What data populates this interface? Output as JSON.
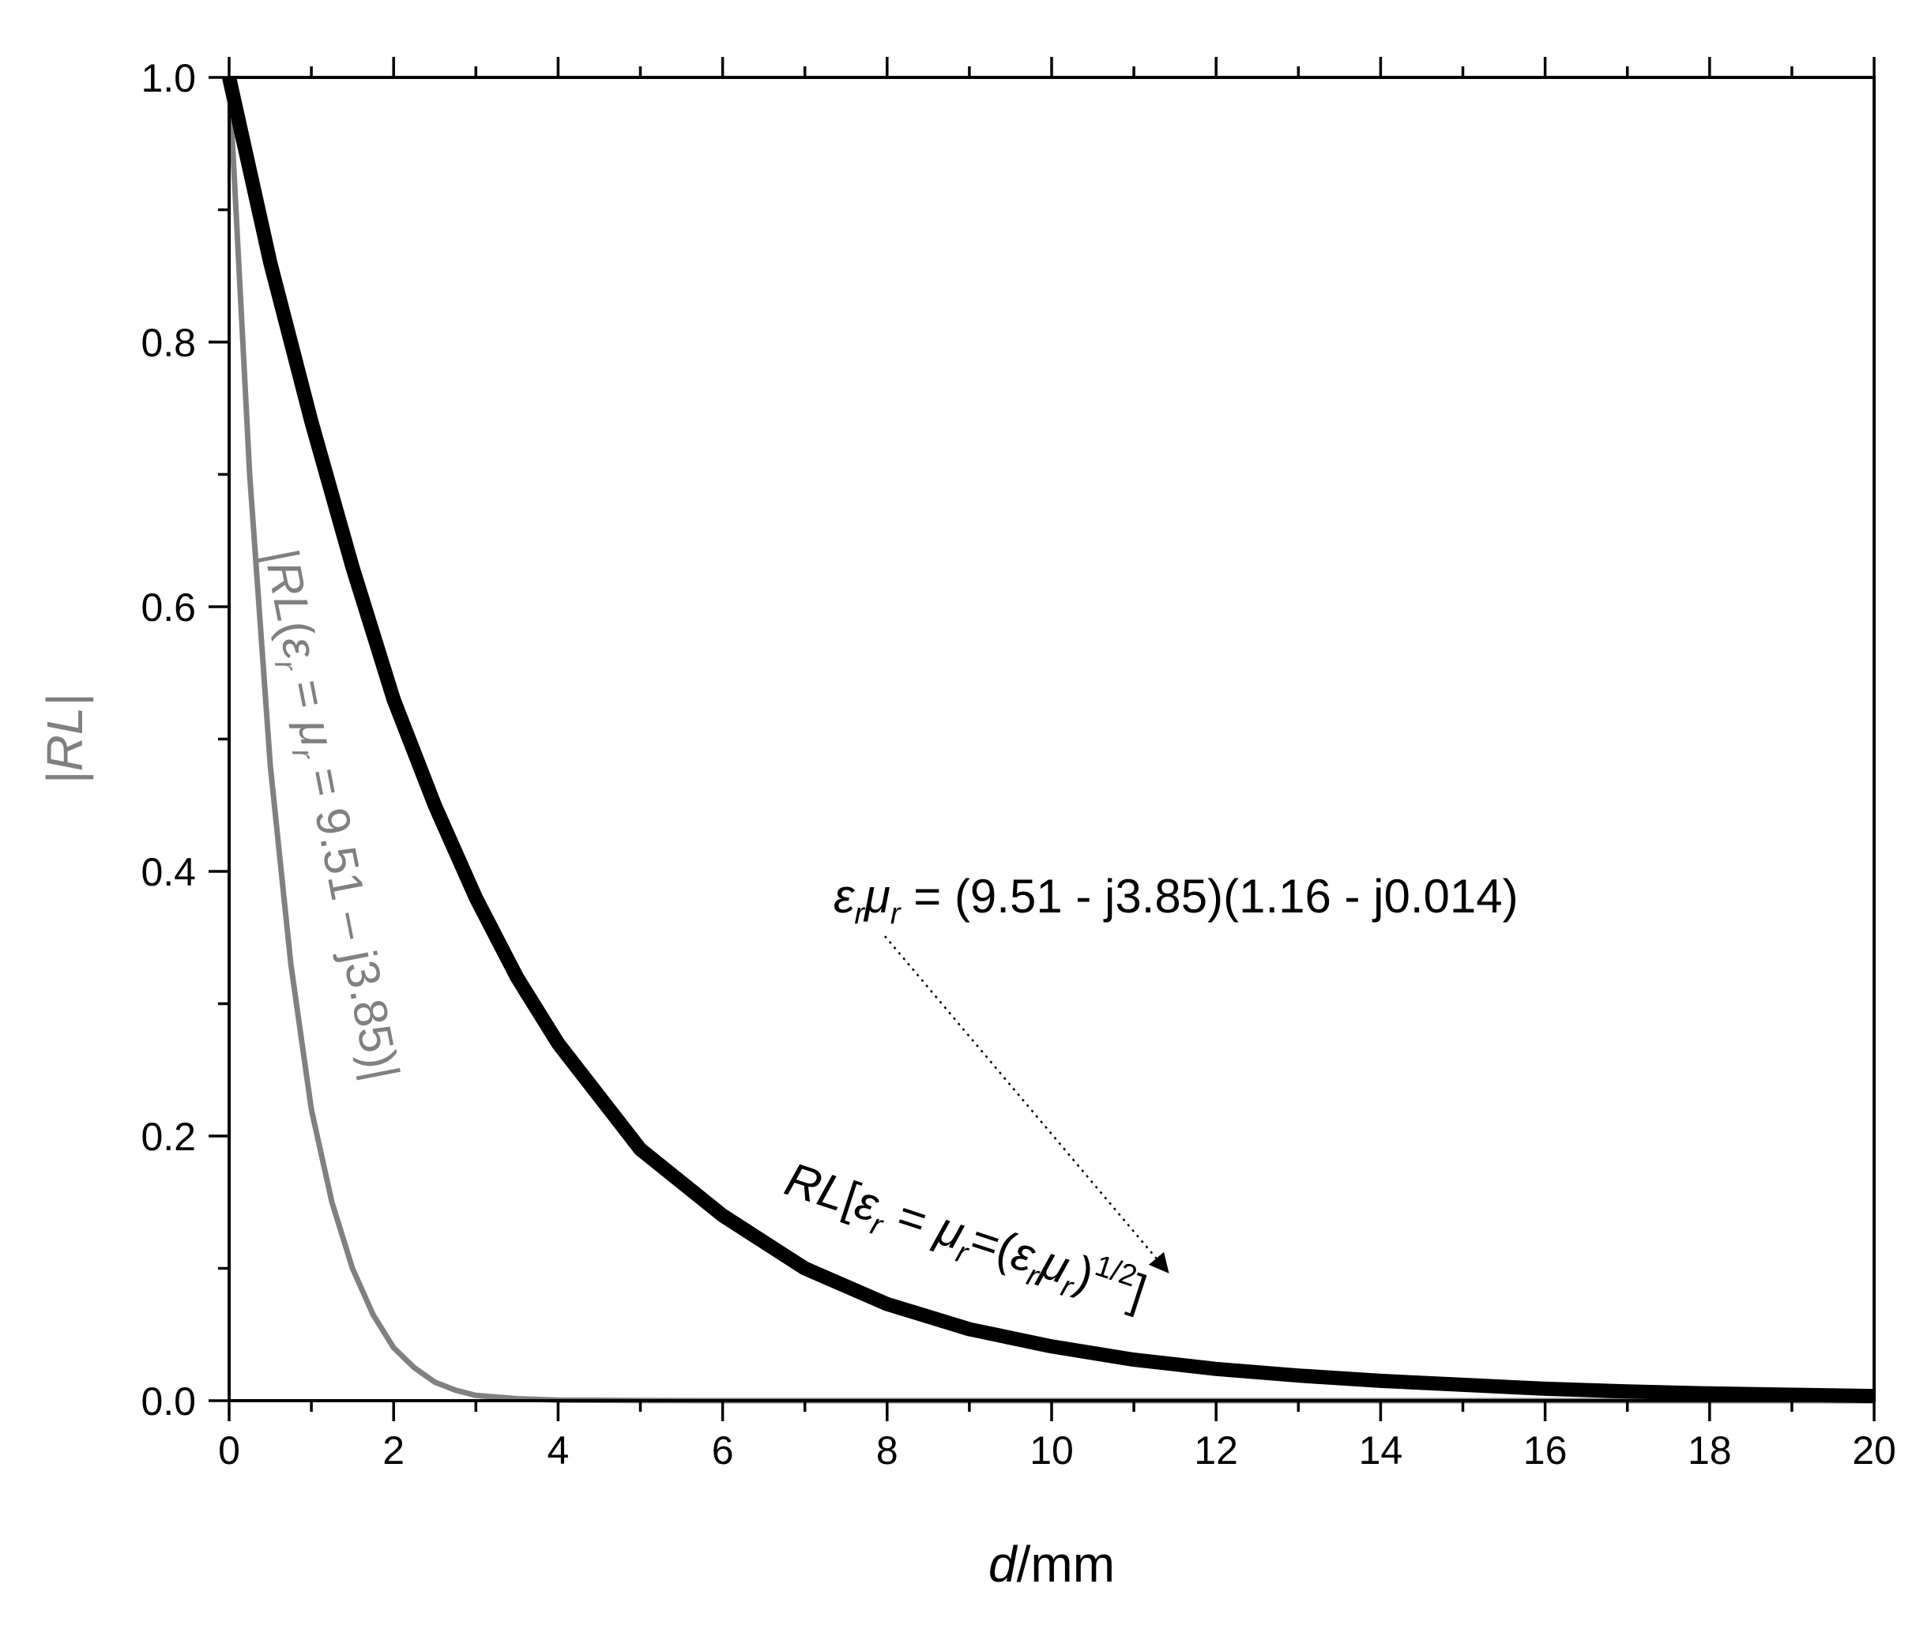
{
  "chart_data": {
    "type": "line",
    "xlabel": {
      "italic": "d",
      "rest": "/mm"
    },
    "ylabel": "|RL|",
    "xlim": [
      0,
      20
    ],
    "ylim": [
      0,
      1.0
    ],
    "x_ticks": [
      "0",
      "2",
      "4",
      "6",
      "8",
      "10",
      "12",
      "14",
      "16",
      "18",
      "20"
    ],
    "y_ticks": [
      "0.0",
      "0.2",
      "0.4",
      "0.6",
      "0.8",
      "1.0"
    ],
    "grid": false,
    "series": [
      {
        "color": "#808080",
        "x": [
          0,
          0.25,
          0.5,
          0.75,
          1.0,
          1.25,
          1.5,
          1.75,
          2.0,
          2.25,
          2.5,
          2.75,
          3.0,
          3.5,
          4.0,
          5.0,
          6.0,
          8.0,
          10.0,
          12.0,
          14.0,
          16.0,
          18.0,
          20.0
        ],
        "y": [
          1.0,
          0.7,
          0.48,
          0.33,
          0.22,
          0.15,
          0.1,
          0.065,
          0.04,
          0.025,
          0.014,
          0.008,
          0.004,
          0.0015,
          0.0005,
          0.0001,
          0,
          0,
          0,
          0,
          0,
          0,
          0,
          0
        ]
      },
      {
        "color": "#000000",
        "x": [
          0,
          0.5,
          1.0,
          1.5,
          2.0,
          2.5,
          3.0,
          3.5,
          4.0,
          5.0,
          6.0,
          7.0,
          8.0,
          9.0,
          10.0,
          11.0,
          12.0,
          13.0,
          14.0,
          15.0,
          16.0,
          17.0,
          18.0,
          19.0,
          20.0
        ],
        "y": [
          1.0,
          0.86,
          0.74,
          0.63,
          0.53,
          0.45,
          0.38,
          0.32,
          0.27,
          0.19,
          0.14,
          0.1,
          0.073,
          0.054,
          0.041,
          0.031,
          0.024,
          0.019,
          0.015,
          0.012,
          0.009,
          0.007,
          0.0055,
          0.0045,
          0.0035
        ]
      }
    ],
    "annotations": {
      "gray_curve": {
        "parts": [
          {
            "t": "|",
            "sub": false,
            "italic": false
          },
          {
            "t": "RL",
            "sub": false,
            "italic": true
          },
          {
            "t": "(",
            "sub": false,
            "italic": false
          },
          {
            "t": "ε",
            "sub": false,
            "italic": true
          },
          {
            "t": "r",
            "sub": true,
            "italic": true
          },
          {
            "t": " = ",
            "sub": false,
            "italic": false
          },
          {
            "t": "μ",
            "sub": false,
            "italic": true
          },
          {
            "t": "r",
            "sub": true,
            "italic": true
          },
          {
            "t": " = 9.51 – j3.85)|",
            "sub": false,
            "italic": false
          }
        ]
      },
      "black_curve": {
        "parts": [
          {
            "t": "RL",
            "italic": true,
            "shift": "none"
          },
          {
            "t": "[",
            "italic": false,
            "shift": "none"
          },
          {
            "t": "ε",
            "italic": true,
            "shift": "none"
          },
          {
            "t": "r",
            "italic": true,
            "shift": "sub"
          },
          {
            "t": " = ",
            "italic": false,
            "shift": "none"
          },
          {
            "t": "μ",
            "italic": true,
            "shift": "none"
          },
          {
            "t": "r",
            "italic": true,
            "shift": "sub"
          },
          {
            "t": "=(",
            "italic": false,
            "shift": "none"
          },
          {
            "t": "ε",
            "italic": true,
            "shift": "none"
          },
          {
            "t": "r",
            "italic": true,
            "shift": "sub"
          },
          {
            "t": "μ",
            "italic": true,
            "shift": "none"
          },
          {
            "t": "r",
            "italic": true,
            "shift": "sub"
          },
          {
            "t": ")",
            "italic": false,
            "shift": "none"
          },
          {
            "t": "1/2",
            "italic": false,
            "shift": "super"
          },
          {
            "t": "]",
            "italic": false,
            "shift": "none"
          }
        ]
      },
      "product": {
        "parts": [
          {
            "t": "ε",
            "sub": false,
            "italic": true
          },
          {
            "t": "r",
            "sub": true,
            "italic": true
          },
          {
            "t": "μ",
            "sub": false,
            "italic": true
          },
          {
            "t": "r",
            "sub": true,
            "italic": true
          },
          {
            "t": " = (9.51 -  j3.85)(1.16 - j0.014)",
            "sub": false,
            "italic": false
          }
        ]
      }
    }
  }
}
